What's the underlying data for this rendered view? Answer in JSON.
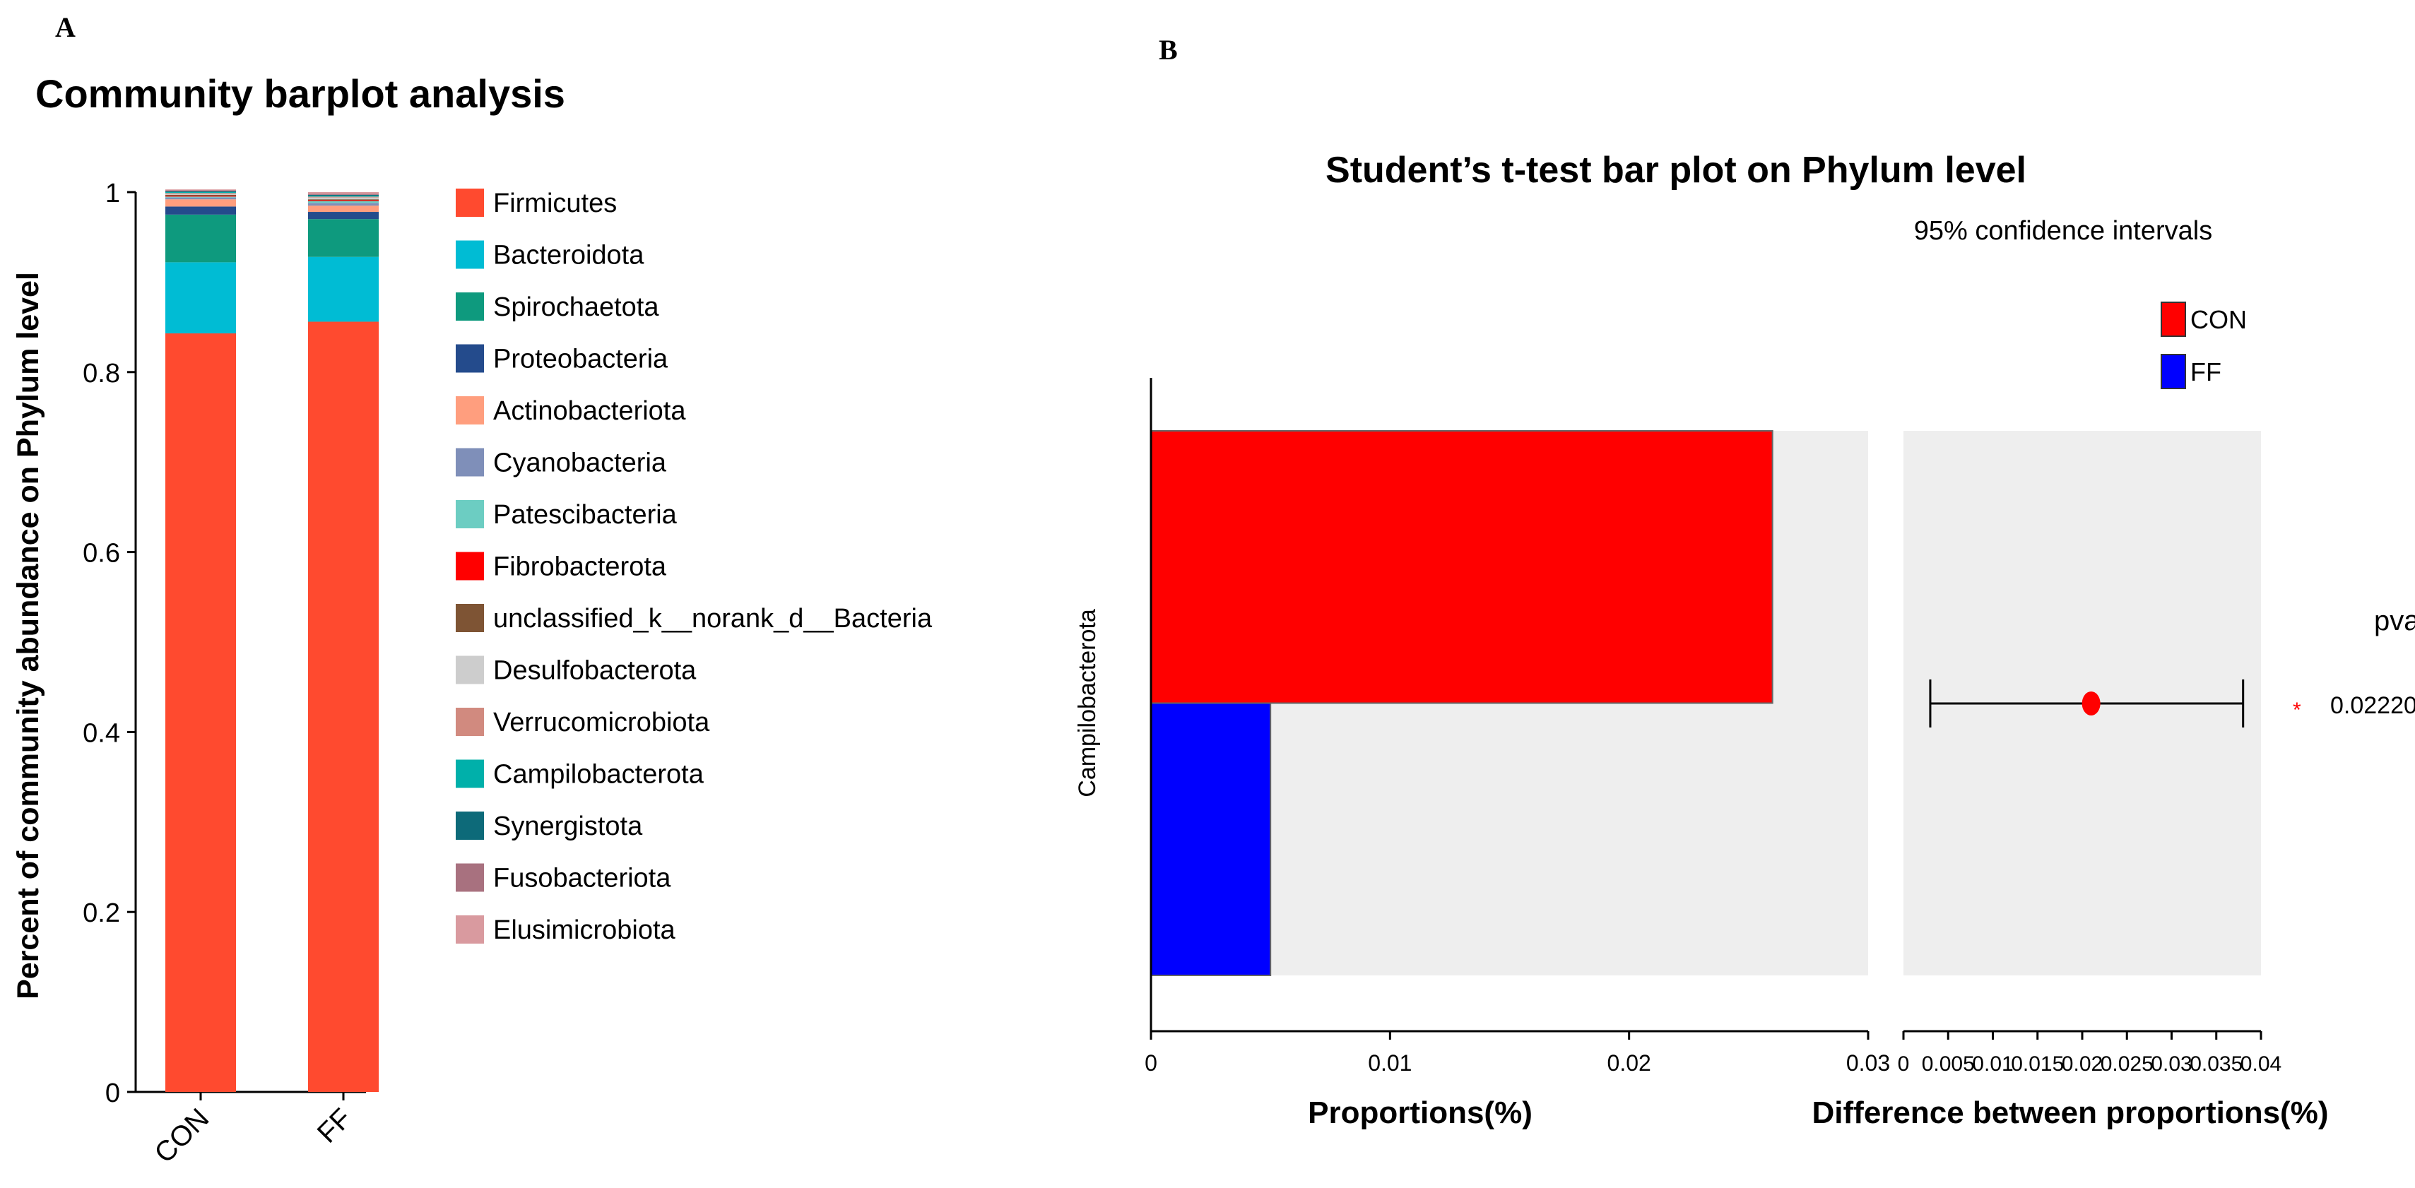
{
  "panels": {
    "a_label": "A",
    "b_label": "B"
  },
  "chart_data": [
    {
      "type": "bar",
      "stacked": true,
      "title": "Community barplot analysis",
      "ylabel": "Percent of community abundance on Phylum level",
      "xlabel": "",
      "categories": [
        "CON",
        "FF"
      ],
      "ylim": [
        0,
        1
      ],
      "yticks": [
        "0",
        "0.2",
        "0.4",
        "0.6",
        "0.8",
        "1"
      ],
      "legend_position": "right",
      "series": [
        {
          "name": "Firmicutes",
          "color": "#FF4A2F",
          "values": [
            0.843,
            0.856
          ]
        },
        {
          "name": "Bacteroidota",
          "color": "#00BCD4",
          "values": [
            0.079,
            0.072
          ]
        },
        {
          "name": "Spirochaetota",
          "color": "#0E9A7E",
          "values": [
            0.053,
            0.042
          ]
        },
        {
          "name": "Proteobacteria",
          "color": "#244B8C",
          "values": [
            0.009,
            0.008
          ]
        },
        {
          "name": "Actinobacteriota",
          "color": "#FF9E7E",
          "values": [
            0.008,
            0.007
          ]
        },
        {
          "name": "Cyanobacteria",
          "color": "#7F8FB9",
          "values": [
            0.002,
            0.003
          ]
        },
        {
          "name": "Patescibacteria",
          "color": "#6CCDC2",
          "values": [
            0.001,
            0.002
          ]
        },
        {
          "name": "Fibrobacterota",
          "color": "#FF0000",
          "values": [
            0.001,
            0.001
          ]
        },
        {
          "name": "unclassified_k__norank_d__Bacteria",
          "color": "#7E5434",
          "values": [
            0.001,
            0.001
          ]
        },
        {
          "name": "Desulfobacterota",
          "color": "#CDCDCD",
          "values": [
            0.001,
            0.002
          ]
        },
        {
          "name": "Verrucomicrobiota",
          "color": "#D18A7F",
          "values": [
            0.001,
            0.001
          ]
        },
        {
          "name": "Campilobacterota",
          "color": "#00B0AA",
          "values": [
            0.001,
            0.001
          ]
        },
        {
          "name": "Synergistota",
          "color": "#0D6A79",
          "values": [
            0.001,
            0.001
          ]
        },
        {
          "name": "Fusobacteriota",
          "color": "#A8717F",
          "values": [
            0.001,
            0.001
          ]
        },
        {
          "name": "Elusimicrobiota",
          "color": "#D99A9F",
          "values": [
            0.001,
            0.002
          ]
        }
      ]
    },
    {
      "type": "bar",
      "orientation": "horizontal",
      "title": "Student’s t-test bar plot on Phylum level",
      "subtitle": "95% confidence intervals",
      "xlabel": "Proportions(%)",
      "categories": [
        "Campilobacterota"
      ],
      "xlim": [
        0,
        0.03
      ],
      "xticks": [
        "0",
        "0.01",
        "0.02",
        "0.03"
      ],
      "legend_position": "top-right",
      "series": [
        {
          "name": "CON",
          "color": "#FF0000",
          "values": [
            0.026
          ]
        },
        {
          "name": "FF",
          "color": "#0000FF",
          "values": [
            0.005
          ]
        }
      ]
    },
    {
      "type": "scatter",
      "subtype": "confidence-interval",
      "xlabel": "Difference between proportions(%)",
      "xlim": [
        0,
        0.04
      ],
      "xticks": [
        "0",
        "0.005",
        "0.01",
        "0.015",
        "0.02",
        "0.025",
        "0.03",
        "0.035",
        "0.04"
      ],
      "points": [
        {
          "category": "Campilobacterota",
          "estimate": 0.021,
          "ci_low": 0.003,
          "ci_high": 0.038,
          "color": "#FF0000"
        }
      ],
      "pvalue_header": "pvalue",
      "pvalue_marker": "*",
      "pvalue_text": "0.02220"
    }
  ]
}
